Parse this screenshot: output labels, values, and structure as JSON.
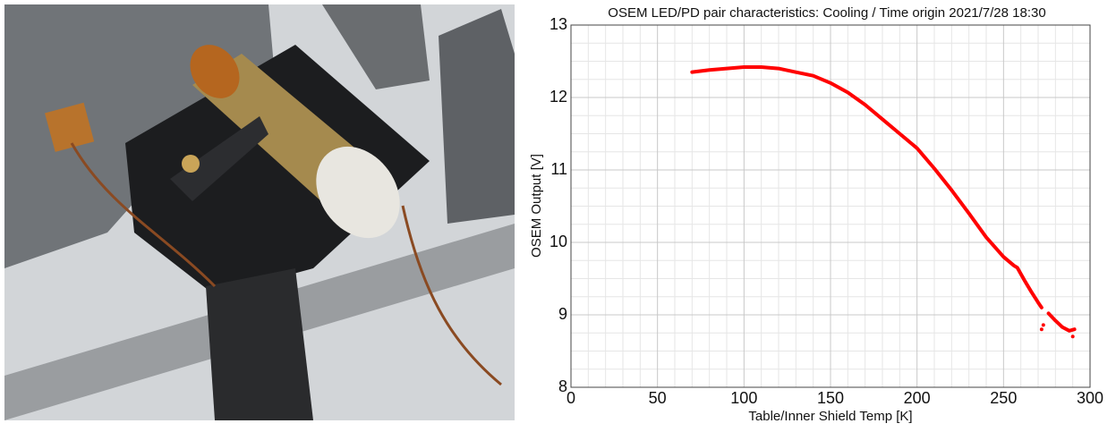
{
  "chart_data": {
    "type": "line",
    "title": "OSEM LED/PD pair characteristics: Cooling / Time origin 2021/7/28 18:30",
    "x_label": "Table/Inner Shield Temp [K]",
    "y_label": "OSEM Output [V]",
    "xlim": [
      0,
      300
    ],
    "xticks": [
      0,
      50,
      100,
      150,
      200,
      250,
      300
    ],
    "ylim": [
      8,
      13
    ],
    "yticks": [
      8,
      9,
      10,
      11,
      12,
      13
    ],
    "grid": true,
    "series": [
      {
        "color": "#ff0000",
        "x": [
          70,
          80,
          90,
          100,
          110,
          120,
          130,
          140,
          150,
          160,
          170,
          180,
          190,
          200,
          210,
          220,
          230,
          240,
          250,
          254,
          256,
          258,
          262,
          266,
          270,
          272,
          null,
          272,
          null,
          273,
          null,
          276,
          280,
          284,
          288,
          291,
          null,
          290
        ],
        "values": [
          12.35,
          12.38,
          12.4,
          12.42,
          12.42,
          12.4,
          12.35,
          12.3,
          12.2,
          12.07,
          11.9,
          11.7,
          11.5,
          11.3,
          11.02,
          10.72,
          10.4,
          10.07,
          9.8,
          9.72,
          9.68,
          9.65,
          9.48,
          9.32,
          9.17,
          9.1,
          null,
          8.8,
          null,
          8.86,
          null,
          9.02,
          8.92,
          8.83,
          8.78,
          8.8,
          null,
          8.7
        ]
      }
    ]
  }
}
